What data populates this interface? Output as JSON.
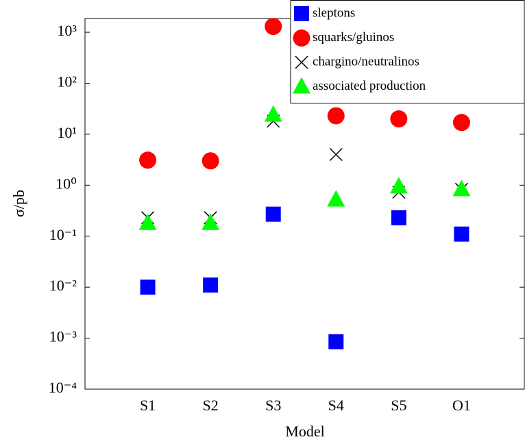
{
  "chart_data": {
    "type": "scatter",
    "x_label": "Model",
    "y_label": "σ/pb",
    "categories": [
      "S1",
      "S2",
      "S3",
      "S4",
      "S5",
      "O1"
    ],
    "log_y": true,
    "ylim": [
      0.0001,
      1860
    ],
    "yticks": [
      {
        "value": 0.0001,
        "label": "10⁻⁴"
      },
      {
        "value": 0.001,
        "label": "10⁻³"
      },
      {
        "value": 0.01,
        "label": "10⁻²"
      },
      {
        "value": 0.1,
        "label": "10⁻¹"
      },
      {
        "value": 1,
        "label": "10⁰"
      },
      {
        "value": 10,
        "label": "10¹"
      },
      {
        "value": 100,
        "label": "10²"
      },
      {
        "value": 1000,
        "label": "10³"
      }
    ],
    "legend_position": "upper right",
    "series": [
      {
        "name": "sleptons",
        "color": "#0000ff",
        "marker": "square",
        "values": [
          0.01,
          0.011,
          0.27,
          0.00085,
          0.23,
          0.11
        ]
      },
      {
        "name": "squarks/gluinos",
        "color": "#ff0000",
        "marker": "circle",
        "values": [
          3.1,
          3.0,
          1300,
          23,
          20,
          17
        ]
      },
      {
        "name": "chargino/neutralinos",
        "color": "#000000",
        "marker": "cross",
        "values": [
          0.23,
          0.23,
          18,
          4.0,
          0.73,
          0.83
        ]
      },
      {
        "name": "associated production",
        "color": "#00ff00",
        "marker": "triangle",
        "values": [
          0.18,
          0.18,
          24,
          0.52,
          0.94,
          0.83
        ]
      }
    ]
  }
}
